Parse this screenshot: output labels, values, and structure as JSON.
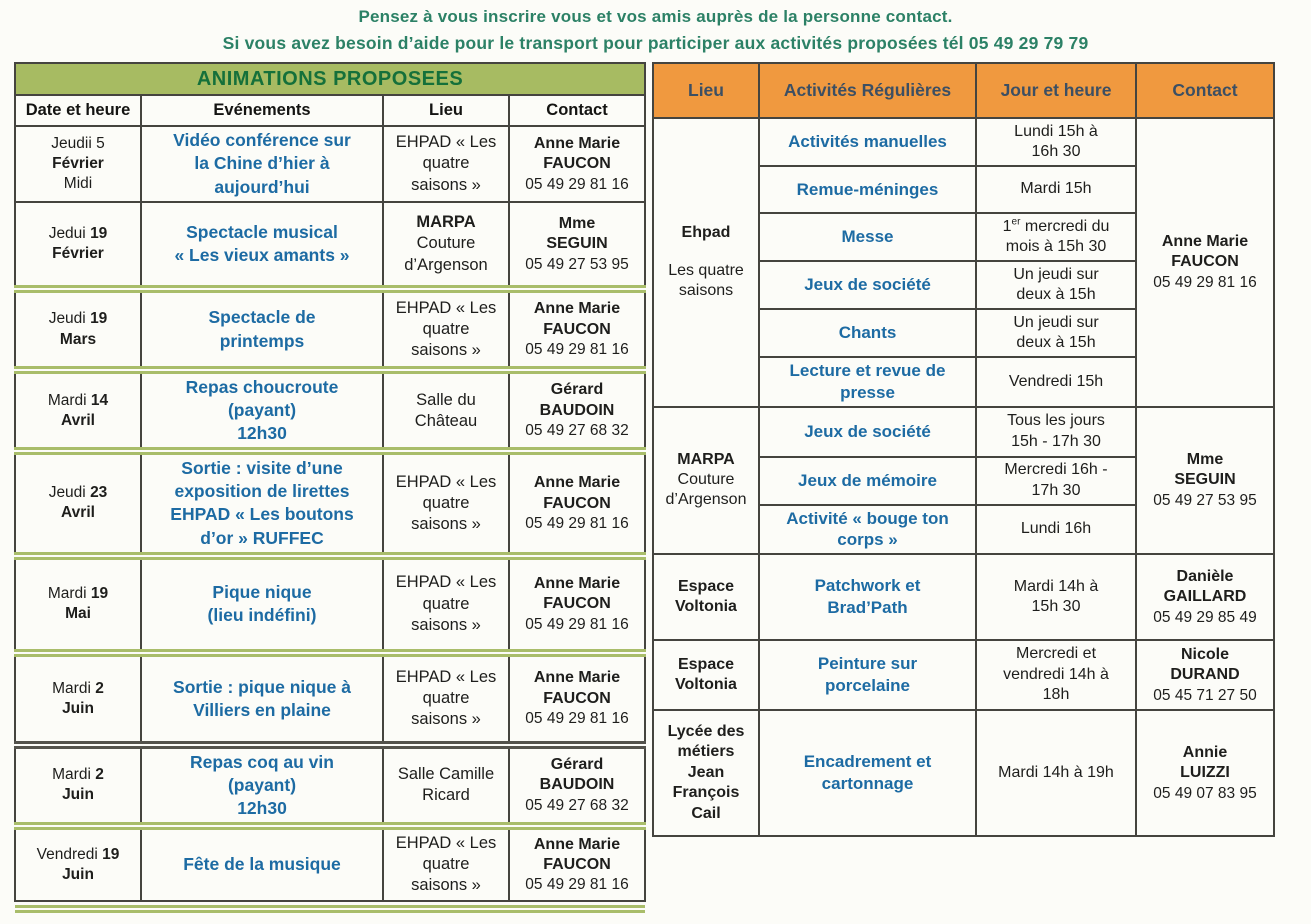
{
  "intro": {
    "line1": "Pensez à vous inscrire vous et vos amis auprès de la personne contact.",
    "line2": "Si vous avez besoin d’aide pour le transport pour participer aux activités proposées tél 05 49 29 79 79"
  },
  "colors": {
    "intro_text": "#2c8166",
    "left_header_bg": "#a7bb62",
    "left_title_text": "#15703a",
    "right_header_bg": "#f0993f",
    "right_header_text": "#3c4f63",
    "event_blue": "#1d6ba3",
    "separator_green": "#a9bd6a",
    "border": "#45443f"
  },
  "left_table": {
    "title": "ANIMATIONS PROPOSEES",
    "headers": [
      "Date et heure",
      "Evénements",
      "Lieu",
      "Contact"
    ],
    "bottom_sep": "green",
    "rows": [
      {
        "sep_before": "none",
        "date": {
          "day": "Jeudii",
          "num": "5",
          "num_bold": false,
          "month": "Février",
          "note": "Midi"
        },
        "event": "Vidéo conférence sur\nla Chine d’hier à\naujourd’hui",
        "lieu": {
          "bold": "",
          "text": "EHPAD « Les\nquatre\nsaisons »"
        },
        "contact": {
          "name": "Anne Marie\nFAUCON",
          "phone": "05 49 29 81 16"
        }
      },
      {
        "sep_before": "none",
        "date": {
          "day": "Jedui",
          "num": "19",
          "num_bold": true,
          "month": "Février",
          "note": ""
        },
        "event": "Spectacle musical\n« Les vieux amants »",
        "lieu": {
          "bold": "MARPA",
          "text": "Couture\nd’Argenson"
        },
        "contact": {
          "name": "Mme\nSEGUIN",
          "phone": "05 49 27 53 95"
        }
      },
      {
        "sep_before": "green",
        "date": {
          "day": "Jeudi",
          "num": "19",
          "num_bold": true,
          "month": "Mars",
          "note": ""
        },
        "event": "Spectacle de\nprintemps",
        "lieu": {
          "bold": "",
          "text": "EHPAD « Les\nquatre\nsaisons »"
        },
        "contact": {
          "name": "Anne Marie\nFAUCON",
          "phone": "05 49 29 81 16"
        }
      },
      {
        "sep_before": "green",
        "date": {
          "day": "Mardi",
          "num": "14",
          "num_bold": true,
          "month": "Avril",
          "note": ""
        },
        "event": "Repas choucroute\n(payant)\n12h30",
        "lieu": {
          "bold": "",
          "text": "Salle du\nChâteau"
        },
        "contact": {
          "name": "Gérard\nBAUDOIN",
          "phone": "05 49 27 68 32"
        }
      },
      {
        "sep_before": "green",
        "date": {
          "day": "Jeudi",
          "num": "23",
          "num_bold": true,
          "month": "Avril",
          "note": ""
        },
        "event": "Sortie : visite d’une\nexposition de lirettes\nEHPAD « Les boutons\nd’or » RUFFEC",
        "lieu": {
          "bold": "",
          "text": "EHPAD « Les\nquatre\nsaisons »"
        },
        "contact": {
          "name": "Anne Marie\nFAUCON",
          "phone": "05 49 29 81 16"
        }
      },
      {
        "sep_before": "green",
        "date": {
          "day": "Mardi",
          "num": "19",
          "num_bold": true,
          "month": "Mai",
          "note": ""
        },
        "event": "Pique nique\n(lieu indéfini)",
        "lieu": {
          "bold": "",
          "text": "EHPAD « Les\nquatre\nsaisons »"
        },
        "contact": {
          "name": "Anne Marie\nFAUCON",
          "phone": "05 49 29 81 16"
        }
      },
      {
        "sep_before": "green",
        "date": {
          "day": "Mardi",
          "num": "2",
          "num_bold": true,
          "month": "Juin",
          "note": ""
        },
        "event": "Sortie : pique nique à\nVilliers en plaine",
        "lieu": {
          "bold": "",
          "text": "EHPAD « Les\nquatre\nsaisons »"
        },
        "contact": {
          "name": "Anne Marie\nFAUCON",
          "phone": "05 49 29 81 16"
        }
      },
      {
        "sep_before": "dark",
        "date": {
          "day": "Mardi",
          "num": "2",
          "num_bold": true,
          "month": "Juin",
          "note": ""
        },
        "event": "Repas coq au vin\n(payant)\n12h30",
        "lieu": {
          "bold": "",
          "text": "Salle Camille\nRicard"
        },
        "contact": {
          "name": "Gérard\nBAUDOIN",
          "phone": "05 49 27 68 32"
        }
      },
      {
        "sep_before": "green",
        "date": {
          "day": "Vendredi",
          "num": "19",
          "num_bold": true,
          "month": "Juin",
          "note": ""
        },
        "event": "Fête de la musique",
        "lieu": {
          "bold": "",
          "text": "EHPAD « Les\nquatre\nsaisons »"
        },
        "contact": {
          "name": "Anne Marie\nFAUCON",
          "phone": "05 49 29 81 16"
        }
      }
    ]
  },
  "right_table": {
    "headers": [
      "Lieu",
      "Activités Régulières",
      "Jour et heure",
      "Contact"
    ],
    "groups": [
      {
        "lieu": {
          "bold": "Ehpad",
          "text": "Les quatre\nsaisons",
          "gap": true
        },
        "contact": {
          "name": "Anne Marie\nFAUCON",
          "phone": "05 49 29 81 16"
        },
        "rows": [
          {
            "activity": "Activités manuelles",
            "time": "Lundi 15h à\n16h 30"
          },
          {
            "activity": "Remue-méninges",
            "time": "Mardi 15h"
          },
          {
            "activity": "Messe",
            "time": "1^er mercredi du\nmois à 15h 30"
          },
          {
            "activity": "Jeux de société",
            "time": "Un jeudi sur\ndeux à 15h"
          },
          {
            "activity": "Chants",
            "time": "Un jeudi sur\ndeux à 15h"
          },
          {
            "activity": "Lecture et revue de\npresse",
            "time": "Vendredi 15h"
          }
        ]
      },
      {
        "lieu": {
          "bold": "MARPA",
          "text": "Couture\nd’Argenson",
          "gap": false
        },
        "contact": {
          "name": "Mme\nSEGUIN",
          "phone": "05 49 27 53 95"
        },
        "rows": [
          {
            "activity": "Jeux de société",
            "time": "Tous les jours\n15h - 17h 30"
          },
          {
            "activity": "Jeux de mémoire",
            "time": "Mercredi 16h -\n17h 30"
          },
          {
            "activity": "Activité « bouge ton\ncorps »",
            "time": "Lundi 16h"
          }
        ]
      },
      {
        "lieu": {
          "bold": "Espace\nVoltonia",
          "text": "",
          "gap": false
        },
        "contact": {
          "name": "Danièle\nGAILLARD",
          "phone": "05 49 29 85 49"
        },
        "rows": [
          {
            "activity": "Patchwork et\nBrad’Path",
            "time": "Mardi 14h à\n15h 30"
          }
        ]
      },
      {
        "lieu": {
          "bold": "Espace\nVoltonia",
          "text": "",
          "gap": false
        },
        "contact": {
          "name": "Nicole\nDURAND",
          "phone": "05 45 71 27 50"
        },
        "rows": [
          {
            "activity": "Peinture sur\nporcelaine",
            "time": "Mercredi et\nvendredi 14h à\n18h"
          }
        ]
      },
      {
        "lieu": {
          "bold": "Lycée des\nmétiers\nJean\nFrançois\nCail",
          "text": "",
          "gap": false
        },
        "contact": {
          "name": "Annie\nLUIZZI",
          "phone": "05 49 07 83 95"
        },
        "rows": [
          {
            "activity": "Encadrement et\ncartonnage",
            "time": "Mardi 14h à 19h"
          }
        ]
      }
    ]
  }
}
